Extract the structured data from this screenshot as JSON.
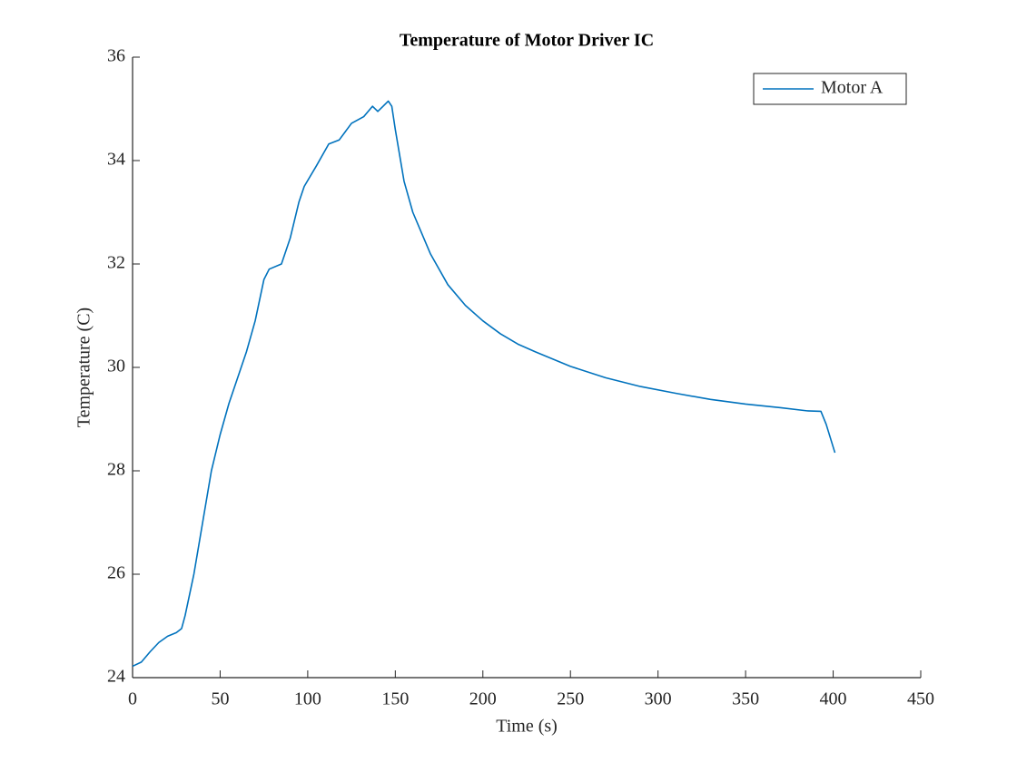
{
  "chart_data": {
    "type": "line",
    "title": "Temperature of Motor Driver IC",
    "x_label": "Time (s)",
    "y_label": "Temperature (C)",
    "x": [
      0,
      5,
      10,
      15,
      20,
      25,
      28,
      30,
      35,
      40,
      45,
      50,
      55,
      60,
      65,
      70,
      75,
      78,
      85,
      90,
      95,
      98,
      105,
      112,
      118,
      125,
      132,
      137,
      140,
      143,
      146,
      148,
      150,
      155,
      160,
      170,
      180,
      190,
      200,
      210,
      220,
      230,
      250,
      270,
      290,
      310,
      330,
      350,
      370,
      385,
      393,
      396,
      401
    ],
    "series": [
      {
        "name": "Motor A",
        "color": "#0072bd",
        "values": [
          24.22,
          24.3,
          24.5,
          24.68,
          24.8,
          24.87,
          24.95,
          25.2,
          26.0,
          27.0,
          28.0,
          28.7,
          29.3,
          29.8,
          30.3,
          30.9,
          31.7,
          31.9,
          32.0,
          32.5,
          33.2,
          33.5,
          33.9,
          34.32,
          34.4,
          34.72,
          34.85,
          35.05,
          34.95,
          35.05,
          35.15,
          35.05,
          34.6,
          33.6,
          33.0,
          32.2,
          31.6,
          31.2,
          30.9,
          30.65,
          30.45,
          30.3,
          30.02,
          29.8,
          29.63,
          29.5,
          29.38,
          29.29,
          29.22,
          29.16,
          29.15,
          28.9,
          28.35
        ]
      }
    ],
    "xlim": [
      0,
      450
    ],
    "xticks": [
      0,
      50,
      100,
      150,
      200,
      250,
      300,
      350,
      400,
      450
    ],
    "ylim": [
      24,
      36
    ],
    "yticks": [
      24,
      26,
      28,
      30,
      32,
      34,
      36
    ],
    "legend": "upper right"
  }
}
